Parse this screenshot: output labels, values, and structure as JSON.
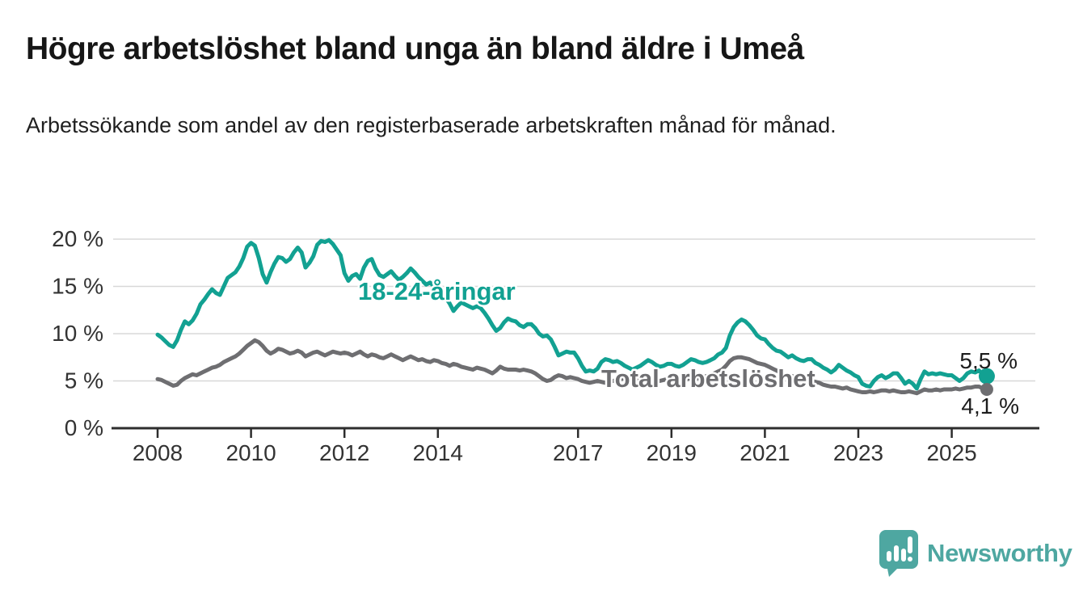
{
  "header": {
    "title": "Högre arbetslöshet bland unga än bland äldre i Umeå",
    "subtitle": "Arbetssökande som andel av den registerbaserade arbetskraften månad för månad."
  },
  "chart_data": {
    "type": "line",
    "unit": "%",
    "x_start": "2008-01",
    "x_end": "2025-10",
    "x_resolution": "monthly",
    "x_ticks": [
      2008,
      2010,
      2012,
      2014,
      2017,
      2019,
      2021,
      2023,
      2025
    ],
    "y_tick_values": [
      0,
      5,
      10,
      15,
      20
    ],
    "y_tick_labels": [
      "0 %",
      "5 %",
      "10 %",
      "15 %",
      "20 %"
    ],
    "ylim": [
      0,
      21
    ],
    "grid": "horizontal",
    "legend_position": "inline-annotations",
    "series": [
      {
        "name": "18-24-åringar",
        "color": "#12a192",
        "end_label": "5,5 %",
        "end_value": 5.5,
        "values": [
          9.9,
          9.6,
          9.2,
          8.8,
          8.6,
          9.3,
          10.4,
          11.3,
          11.0,
          11.4,
          12.1,
          13.1,
          13.6,
          14.2,
          14.7,
          14.3,
          14.1,
          15.0,
          15.9,
          16.2,
          16.5,
          17.1,
          18.0,
          19.2,
          19.6,
          19.3,
          18.0,
          16.3,
          15.4,
          16.5,
          17.4,
          18.1,
          18.0,
          17.6,
          17.9,
          18.6,
          19.1,
          18.6,
          17.0,
          17.5,
          18.2,
          19.4,
          19.8,
          19.7,
          19.9,
          19.5,
          18.9,
          18.3,
          16.4,
          15.6,
          16.1,
          16.3,
          15.8,
          17.0,
          17.7,
          17.9,
          16.9,
          16.2,
          16.0,
          16.3,
          16.6,
          16.1,
          15.7,
          16.0,
          16.4,
          16.9,
          16.5,
          16.0,
          15.6,
          15.2,
          15.4,
          15.0,
          14.6,
          14.2,
          13.8,
          13.2,
          12.4,
          12.9,
          13.3,
          13.1,
          12.9,
          12.7,
          12.9,
          12.7,
          12.2,
          11.6,
          10.9,
          10.3,
          10.6,
          11.2,
          11.6,
          11.4,
          11.3,
          10.9,
          10.7,
          11.0,
          11.0,
          10.6,
          10.0,
          9.7,
          9.8,
          9.4,
          8.6,
          7.7,
          7.9,
          8.1,
          8.0,
          8.0,
          7.4,
          6.6,
          6.0,
          6.1,
          6.0,
          6.3,
          7.0,
          7.3,
          7.2,
          7.0,
          7.1,
          6.9,
          6.6,
          6.4,
          6.2,
          6.4,
          6.6,
          6.9,
          7.2,
          7.0,
          6.7,
          6.5,
          6.6,
          6.8,
          6.8,
          6.6,
          6.5,
          6.7,
          7.0,
          7.3,
          7.2,
          7.0,
          6.9,
          7.0,
          7.2,
          7.4,
          7.8,
          8.0,
          8.5,
          9.8,
          10.7,
          11.2,
          11.5,
          11.3,
          10.9,
          10.4,
          9.8,
          9.5,
          9.4,
          8.9,
          8.5,
          8.2,
          8.1,
          7.8,
          7.5,
          7.7,
          7.4,
          7.2,
          7.1,
          7.3,
          7.3,
          6.9,
          6.7,
          6.4,
          6.2,
          5.9,
          6.2,
          6.7,
          6.4,
          6.1,
          5.9,
          5.6,
          5.4,
          4.7,
          4.5,
          4.4,
          5.0,
          5.4,
          5.6,
          5.3,
          5.5,
          5.8,
          5.8,
          5.3,
          4.7,
          5.0,
          4.7,
          4.2,
          5.2,
          6.0,
          5.7,
          5.8,
          5.7,
          5.8,
          5.7,
          5.6,
          5.6,
          5.3,
          5.0,
          5.3,
          5.8,
          6.0,
          5.9,
          6.1,
          5.7,
          5.5
        ]
      },
      {
        "name": "Total arbetslöshet",
        "color": "#6e6e71",
        "end_label": "4,1 %",
        "end_value": 4.1,
        "values": [
          5.2,
          5.1,
          4.9,
          4.7,
          4.5,
          4.6,
          5.0,
          5.3,
          5.5,
          5.7,
          5.6,
          5.8,
          6.0,
          6.2,
          6.4,
          6.5,
          6.7,
          7.0,
          7.2,
          7.4,
          7.6,
          7.9,
          8.3,
          8.7,
          9.0,
          9.3,
          9.1,
          8.7,
          8.2,
          7.9,
          8.1,
          8.4,
          8.3,
          8.1,
          7.9,
          8.0,
          8.2,
          8.0,
          7.6,
          7.8,
          8.0,
          8.1,
          7.9,
          7.7,
          7.9,
          8.1,
          8.0,
          7.9,
          8.0,
          7.9,
          7.7,
          7.9,
          8.1,
          7.8,
          7.6,
          7.8,
          7.7,
          7.5,
          7.4,
          7.6,
          7.8,
          7.6,
          7.4,
          7.2,
          7.4,
          7.6,
          7.4,
          7.2,
          7.3,
          7.1,
          7.0,
          7.2,
          7.1,
          6.9,
          6.8,
          6.6,
          6.8,
          6.7,
          6.5,
          6.4,
          6.3,
          6.2,
          6.4,
          6.3,
          6.2,
          6.0,
          5.8,
          6.1,
          6.5,
          6.3,
          6.2,
          6.2,
          6.2,
          6.1,
          6.2,
          6.1,
          6.0,
          5.8,
          5.5,
          5.2,
          5.0,
          5.1,
          5.4,
          5.6,
          5.5,
          5.3,
          5.4,
          5.3,
          5.2,
          5.0,
          4.9,
          4.8,
          4.9,
          5.0,
          4.9,
          4.8,
          4.9,
          5.0,
          5.1,
          5.2,
          5.3,
          5.2,
          5.1,
          5.0,
          5.1,
          5.2,
          5.1,
          5.0,
          5.1,
          5.0,
          5.1,
          5.2,
          5.2,
          5.1,
          5.0,
          5.1,
          5.2,
          5.3,
          5.2,
          5.3,
          5.4,
          5.5,
          5.6,
          5.8,
          6.0,
          6.2,
          6.6,
          7.1,
          7.4,
          7.5,
          7.5,
          7.4,
          7.3,
          7.1,
          6.9,
          6.8,
          6.7,
          6.5,
          6.3,
          6.1,
          5.9,
          5.7,
          5.6,
          5.5,
          5.4,
          5.3,
          5.2,
          5.1,
          5.0,
          4.9,
          4.8,
          4.6,
          4.5,
          4.4,
          4.4,
          4.3,
          4.2,
          4.3,
          4.1,
          4.0,
          3.9,
          3.8,
          3.8,
          3.9,
          3.8,
          3.9,
          4.0,
          4.0,
          3.9,
          4.0,
          3.9,
          3.8,
          3.8,
          3.9,
          3.8,
          3.7,
          3.9,
          4.1,
          4.0,
          4.0,
          4.1,
          4.0,
          4.1,
          4.1,
          4.1,
          4.2,
          4.1,
          4.2,
          4.3,
          4.3,
          4.4,
          4.4,
          4.2,
          4.1
        ]
      }
    ],
    "annotations": [
      {
        "text": "18-24-åringar",
        "color": "#12a192"
      },
      {
        "text": "Total arbetslöshet",
        "color": "#6e6e71"
      }
    ],
    "colors": {
      "grid_line": "#d8d8d8",
      "axis_line": "#2d2d2d",
      "tick_label": "#333333",
      "end_label_text": "#1c1c1c"
    }
  },
  "branding": {
    "logo_text": "Newsworthy",
    "logo_color": "#4ea7a1",
    "logo_icon": "bar-chart-speech-bubble"
  }
}
